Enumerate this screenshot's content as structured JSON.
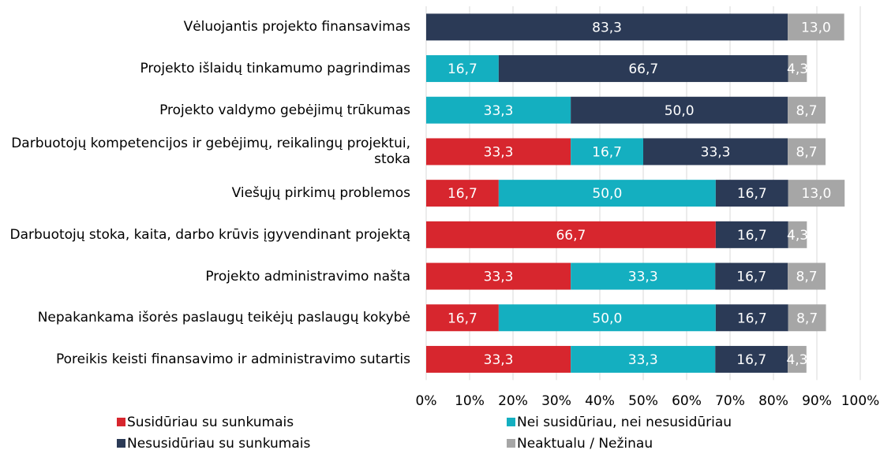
{
  "chart_data": {
    "type": "stacked-barh",
    "categories": [
      "Vėluojantis projekto finansavimas",
      "Projekto išlaidų tinkamumo pagrindimas",
      "Projekto valdymo gebėjimų trūkumas",
      "Darbuotojų kompetencijos ir gebėjimų, reikalingų projektui, stoka",
      "Viešųjų pirkimų problemos",
      "Darbuotojų stoka, kaita, darbo krūvis įgyvendinant projektą",
      "Projekto administravimo našta",
      "Nepakankama išorės paslaugų teikėjų paslaugų kokybė",
      "Poreikis keisti finansavimo ir administravimo sutartis"
    ],
    "series": [
      {
        "name": "Susidūriau su sunkumais",
        "color": "#d7262e",
        "values": [
          null,
          null,
          null,
          33.3,
          16.7,
          66.7,
          33.3,
          16.7,
          33.3
        ],
        "value_labels": [
          null,
          null,
          null,
          "33,3",
          "16,7",
          "66,7",
          "33,3",
          "16,7",
          "33,3"
        ]
      },
      {
        "name": "Nei susidūriau, nei nesusidūriau",
        "color": "#14afc0",
        "values": [
          null,
          16.7,
          33.3,
          16.7,
          50.0,
          null,
          33.3,
          50.0,
          33.3
        ],
        "value_labels": [
          null,
          "16,7",
          "33,3",
          "16,7",
          "50,0",
          null,
          "33,3",
          "50,0",
          "33,3"
        ]
      },
      {
        "name": "Nesusidūriau su sunkumais",
        "color": "#2b3a56",
        "values": [
          83.3,
          66.7,
          50.0,
          33.3,
          16.7,
          16.7,
          16.7,
          16.7,
          16.7
        ],
        "value_labels": [
          "83,3",
          "66,7",
          "50,0",
          "33,3",
          "16,7",
          "16,7",
          "16,7",
          "16,7",
          "16,7"
        ]
      },
      {
        "name": "Neaktualu / Nežinau",
        "color": "#a6a6a6",
        "values": [
          13.0,
          4.3,
          8.7,
          8.7,
          13.0,
          4.3,
          8.7,
          8.7,
          4.3
        ],
        "value_labels": [
          "13,0",
          "4,3",
          "8,7",
          "8,7",
          "13,0",
          "4,3",
          "8,7",
          "8,7",
          "4,3"
        ]
      }
    ],
    "xlim": [
      0,
      100
    ],
    "xticks": [
      {
        "value": 0,
        "label": "0%"
      },
      {
        "value": 10,
        "label": "10%"
      },
      {
        "value": 20,
        "label": "20%"
      },
      {
        "value": 30,
        "label": "30%"
      },
      {
        "value": 40,
        "label": "40%"
      },
      {
        "value": 50,
        "label": "50%"
      },
      {
        "value": 60,
        "label": "60%"
      },
      {
        "value": 70,
        "label": "70%"
      },
      {
        "value": 80,
        "label": "80%"
      },
      {
        "value": 90,
        "label": "90%"
      },
      {
        "value": 100,
        "label": "100%"
      }
    ],
    "grid": true,
    "legend": "bottom"
  }
}
